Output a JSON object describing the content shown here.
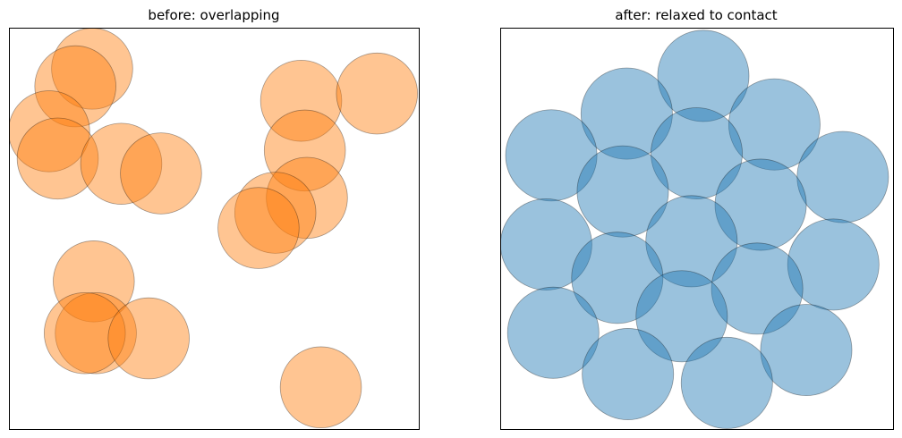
{
  "chart_data": [
    {
      "type": "scatter",
      "title": "before: overlapping",
      "color": "#ff7f0e",
      "fill_opacity": 0.45,
      "xlim": [
        0,
        10
      ],
      "ylim": [
        0,
        10
      ],
      "axes_visible": false,
      "radius": 1.0,
      "circles": [
        {
          "x": 2.03,
          "y": 8.98
        },
        {
          "x": 1.62,
          "y": 8.54
        },
        {
          "x": 0.98,
          "y": 7.42
        },
        {
          "x": 1.19,
          "y": 6.74
        },
        {
          "x": 2.74,
          "y": 6.61
        },
        {
          "x": 3.71,
          "y": 6.37
        },
        {
          "x": 7.13,
          "y": 8.18
        },
        {
          "x": 8.98,
          "y": 8.36
        },
        {
          "x": 7.22,
          "y": 6.94
        },
        {
          "x": 7.27,
          "y": 5.76
        },
        {
          "x": 6.5,
          "y": 5.39
        },
        {
          "x": 6.09,
          "y": 5.01
        },
        {
          "x": 2.07,
          "y": 3.68
        },
        {
          "x": 2.12,
          "y": 2.39
        },
        {
          "x": 1.85,
          "y": 2.39
        },
        {
          "x": 3.41,
          "y": 2.26
        },
        {
          "x": 7.61,
          "y": 1.04
        }
      ]
    },
    {
      "type": "scatter",
      "title": "after: relaxed to contact",
      "color": "#1f77b4",
      "fill_opacity": 0.45,
      "xlim": [
        0,
        10
      ],
      "ylim": [
        0,
        10
      ],
      "axes_visible": false,
      "radius": 1.15,
      "circles": [
        {
          "x": 5.17,
          "y": 8.8
        },
        {
          "x": 3.22,
          "y": 7.86
        },
        {
          "x": 6.98,
          "y": 7.59
        },
        {
          "x": 1.3,
          "y": 6.82
        },
        {
          "x": 5.0,
          "y": 6.87
        },
        {
          "x": 8.72,
          "y": 6.28
        },
        {
          "x": 3.12,
          "y": 5.92
        },
        {
          "x": 6.63,
          "y": 5.59
        },
        {
          "x": 1.17,
          "y": 4.6
        },
        {
          "x": 4.87,
          "y": 4.68
        },
        {
          "x": 8.48,
          "y": 4.1
        },
        {
          "x": 2.98,
          "y": 3.77
        },
        {
          "x": 6.54,
          "y": 3.5
        },
        {
          "x": 4.62,
          "y": 2.81
        },
        {
          "x": 1.35,
          "y": 2.4
        },
        {
          "x": 3.25,
          "y": 1.37
        },
        {
          "x": 7.79,
          "y": 1.97
        },
        {
          "x": 5.77,
          "y": 1.15
        }
      ]
    }
  ]
}
